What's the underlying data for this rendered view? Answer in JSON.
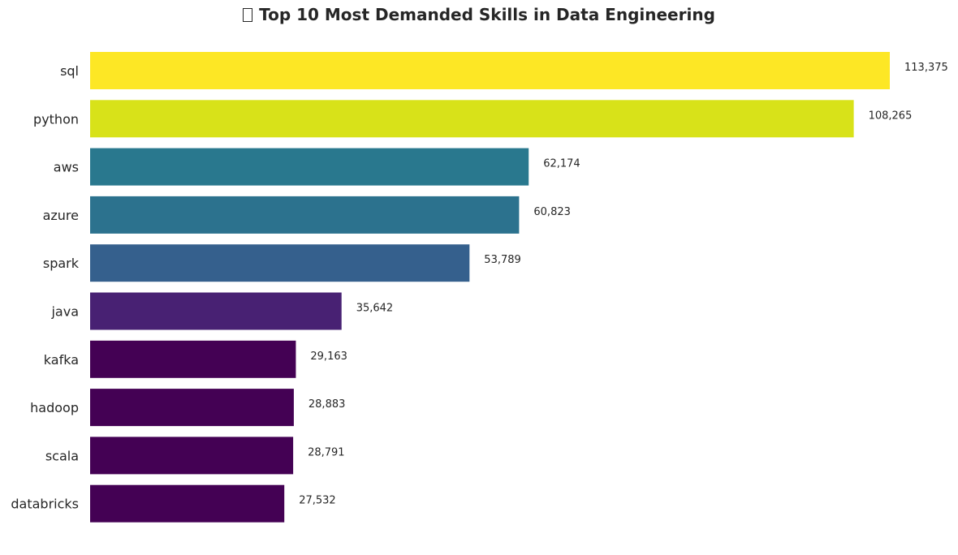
{
  "chart_data": {
    "type": "bar",
    "orientation": "horizontal",
    "title": "Top 10 Most Demanded Skills in Data Engineering",
    "categories": [
      "sql",
      "python",
      "aws",
      "azure",
      "spark",
      "java",
      "kafka",
      "hadoop",
      "scala",
      "databricks"
    ],
    "values": [
      113375,
      108265,
      62174,
      60823,
      53789,
      35642,
      29163,
      28883,
      28791,
      27532
    ],
    "value_labels": [
      "113,375",
      "108,265",
      "62,174",
      "60,823",
      "53,789",
      "35,642",
      "29,163",
      "28,883",
      "28,791",
      "27,532"
    ],
    "colors": [
      "#fde725",
      "#d8e219",
      "#29788e",
      "#2c728e",
      "#35608d",
      "#482173",
      "#440154",
      "#440154",
      "#440154",
      "#440154"
    ],
    "xlabel": "",
    "ylabel": "",
    "xlim": [
      0,
      113375
    ],
    "grid": false,
    "legend": "none"
  }
}
